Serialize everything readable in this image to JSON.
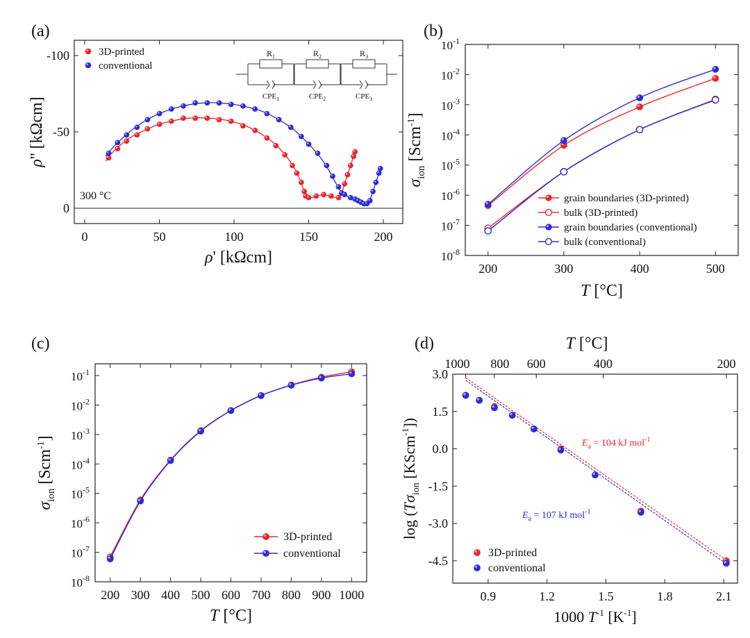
{
  "colors": {
    "red": "#e8262d",
    "blue": "#2b2bd6",
    "purple": "#8a3fa0",
    "frame": "#222222"
  },
  "chart_data": [
    {
      "panel_label": "(a)",
      "type": "scatter",
      "xlabel": "ρ' [kΩcm]",
      "ylabel": "ρ'' [kΩcm]",
      "xlim": [
        -7,
        213
      ],
      "ylim": [
        -110,
        10
      ],
      "y_inverted": true,
      "x_ticks": [
        "0",
        "50",
        "100",
        "150",
        "200"
      ],
      "y_ticks": [
        "-100",
        "-50",
        "0"
      ],
      "grid": false,
      "legend_position": "top-left",
      "annotation": "300 °C",
      "circuit": {
        "resistors": [
          "R1",
          "R2",
          "R3"
        ],
        "cpes": [
          "CPE1",
          "CPE2",
          "CPE3"
        ],
        "resistor_labels": [
          {
            "main": "R",
            "sub": "1"
          },
          {
            "main": "R",
            "sub": "2"
          },
          {
            "main": "R",
            "sub": "3"
          }
        ],
        "cpe_labels": [
          {
            "main": "CPE",
            "sub": "1"
          },
          {
            "main": "CPE",
            "sub": "2"
          },
          {
            "main": "CPE",
            "sub": "3"
          }
        ]
      },
      "series": [
        {
          "name": "3D-printed",
          "color": "#e8262d",
          "filled": true,
          "points": [
            [
              16,
              -33
            ],
            [
              22,
              -39
            ],
            [
              28,
              -44
            ],
            [
              35,
              -48
            ],
            [
              42,
              -52
            ],
            [
              50,
              -55
            ],
            [
              58,
              -57
            ],
            [
              66,
              -59
            ],
            [
              74,
              -59
            ],
            [
              82,
              -59
            ],
            [
              90,
              -58
            ],
            [
              98,
              -57
            ],
            [
              106,
              -54
            ],
            [
              114,
              -51
            ],
            [
              122,
              -46
            ],
            [
              128,
              -41
            ],
            [
              134,
              -35
            ],
            [
              139,
              -28
            ],
            [
              142,
              -23
            ],
            [
              145,
              -17
            ],
            [
              147,
              -11
            ],
            [
              148,
              -8
            ],
            [
              150,
              -7
            ],
            [
              155,
              -8
            ],
            [
              160,
              -9
            ],
            [
              165,
              -8
            ],
            [
              170,
              -7
            ],
            [
              172,
              -10
            ],
            [
              174,
              -16
            ],
            [
              176,
              -22
            ],
            [
              178,
              -28
            ],
            [
              180,
              -34
            ],
            [
              181,
              -37
            ]
          ]
        },
        {
          "name": "conventional",
          "color": "#2b2bd6",
          "filled": true,
          "points": [
            [
              16,
              -36
            ],
            [
              22,
              -43
            ],
            [
              28,
              -48
            ],
            [
              35,
              -53
            ],
            [
              42,
              -58
            ],
            [
              50,
              -62
            ],
            [
              58,
              -65
            ],
            [
              66,
              -67
            ],
            [
              74,
              -69
            ],
            [
              82,
              -69
            ],
            [
              90,
              -69
            ],
            [
              98,
              -68
            ],
            [
              106,
              -67
            ],
            [
              114,
              -65
            ],
            [
              122,
              -62
            ],
            [
              130,
              -58
            ],
            [
              138,
              -53
            ],
            [
              145,
              -47
            ],
            [
              150,
              -42
            ],
            [
              156,
              -36
            ],
            [
              162,
              -28
            ],
            [
              166,
              -21
            ],
            [
              170,
              -14
            ],
            [
              172,
              -10
            ],
            [
              174,
              -9
            ],
            [
              178,
              -7
            ],
            [
              181,
              -6
            ],
            [
              183,
              -5
            ],
            [
              185,
              -4
            ],
            [
              187,
              -3
            ],
            [
              189,
              -3
            ],
            [
              191,
              -5
            ],
            [
              193,
              -11
            ],
            [
              195,
              -17
            ],
            [
              197,
              -23
            ],
            [
              198,
              -26
            ]
          ]
        }
      ],
      "fit_curves": [
        {
          "color": "#e8262d",
          "points": [
            [
              14,
              -31
            ],
            [
              20,
              -38
            ],
            [
              30,
              -46
            ],
            [
              40,
              -51
            ],
            [
              50,
              -55
            ],
            [
              60,
              -57.5
            ],
            [
              70,
              -59
            ],
            [
              80,
              -59.2
            ],
            [
              90,
              -58.4
            ],
            [
              100,
              -56.5
            ],
            [
              110,
              -53
            ],
            [
              120,
              -47.5
            ],
            [
              128,
              -41.5
            ],
            [
              135,
              -34
            ],
            [
              140,
              -27
            ],
            [
              144,
              -19
            ],
            [
              147,
              -11
            ],
            [
              149,
              -7.5
            ],
            [
              152,
              -7
            ],
            [
              158,
              -8.6
            ],
            [
              164,
              -8.2
            ],
            [
              169,
              -7
            ],
            [
              172,
              -10
            ],
            [
              175,
              -19
            ],
            [
              178,
              -28
            ],
            [
              181,
              -37
            ]
          ]
        },
        {
          "color": "#2b2bd6",
          "points": [
            [
              14,
              -34
            ],
            [
              20,
              -41
            ],
            [
              30,
              -50
            ],
            [
              40,
              -57
            ],
            [
              50,
              -62
            ],
            [
              60,
              -65.5
            ],
            [
              70,
              -67.8
            ],
            [
              80,
              -69
            ],
            [
              90,
              -69
            ],
            [
              100,
              -68
            ],
            [
              110,
              -66
            ],
            [
              120,
              -63
            ],
            [
              130,
              -58
            ],
            [
              140,
              -51.5
            ],
            [
              150,
              -42
            ],
            [
              158,
              -33
            ],
            [
              164,
              -24
            ],
            [
              169,
              -15
            ],
            [
              173,
              -9.5
            ],
            [
              178,
              -7
            ],
            [
              183,
              -5
            ],
            [
              187,
              -3.2
            ],
            [
              190,
              -4
            ],
            [
              193,
              -11
            ],
            [
              196,
              -20
            ],
            [
              198,
              -26
            ]
          ]
        }
      ]
    },
    {
      "panel_label": "(b)",
      "type": "line",
      "xlabel": "T [°C]",
      "ylabel": "σ_ion [Scm^-1]",
      "xlabel_main": "T [°C]",
      "ylabel_parts": {
        "sym": "σ",
        "sub": "ion",
        "unit": "[Scm",
        "sup": "-1",
        "close": "]"
      },
      "xlim": [
        170,
        530
      ],
      "y_log": true,
      "ylim_log10": [
        -8,
        -1
      ],
      "x_ticks": [
        "200",
        "300",
        "400",
        "500"
      ],
      "y_tick_labels": [
        {
          "b": "10",
          "e": "-8"
        },
        {
          "b": "10",
          "e": "-7"
        },
        {
          "b": "10",
          "e": "-6"
        },
        {
          "b": "10",
          "e": "-5"
        },
        {
          "b": "10",
          "e": "-4"
        },
        {
          "b": "10",
          "e": "-3"
        },
        {
          "b": "10",
          "e": "-2"
        },
        {
          "b": "10",
          "e": "-1"
        }
      ],
      "legend_position": "bottom-right",
      "x": [
        200,
        300,
        400,
        500
      ],
      "series": [
        {
          "name": "grain boundaries (3D-printed)",
          "color": "#e8262d",
          "filled": true,
          "values": [
            4.5e-07,
            4.5e-05,
            0.00085,
            0.0075
          ]
        },
        {
          "name": "bulk (3D-printed)",
          "color": "#e8262d",
          "filled": false,
          "values": [
            8e-08,
            6e-06,
            0.00015,
            0.0015
          ]
        },
        {
          "name": "grain boundaries (conventional)",
          "color": "#2b2bd6",
          "filled": true,
          "values": [
            5e-07,
            6.5e-05,
            0.0017,
            0.015
          ]
        },
        {
          "name": "bulk (conventional)",
          "color": "#2b2bd6",
          "filled": false,
          "values": [
            6.5e-08,
            6e-06,
            0.00015,
            0.00145
          ]
        }
      ]
    },
    {
      "panel_label": "(c)",
      "type": "line",
      "xlabel": "T [°C]",
      "ylabel": "σ_ion [Scm^-1]",
      "ylabel_parts": {
        "sym": "σ",
        "sub": "ion",
        "unit": "[Scm",
        "sup": "-1",
        "close": "]"
      },
      "xlim": [
        150,
        1050
      ],
      "y_log": true,
      "ylim_log10": [
        -8,
        -0.6
      ],
      "x_ticks": [
        "200",
        "300",
        "400",
        "500",
        "600",
        "700",
        "800",
        "900",
        "1000"
      ],
      "y_tick_labels": [
        {
          "b": "10",
          "e": "-8"
        },
        {
          "b": "10",
          "e": "-7"
        },
        {
          "b": "10",
          "e": "-6"
        },
        {
          "b": "10",
          "e": "-5"
        },
        {
          "b": "10",
          "e": "-4"
        },
        {
          "b": "10",
          "e": "-3"
        },
        {
          "b": "10",
          "e": "-2"
        },
        {
          "b": "10",
          "e": "-1"
        }
      ],
      "legend_position": "bottom-right",
      "x": [
        200,
        300,
        400,
        500,
        600,
        700,
        800,
        900,
        1000
      ],
      "series": [
        {
          "name": "3D-printed",
          "color": "#e8262d",
          "values": [
            7e-08,
            6e-06,
            0.000135,
            0.00135,
            0.0065,
            0.021,
            0.048,
            0.088,
            0.135
          ]
        },
        {
          "name": "conventional",
          "color": "#2b2bd6",
          "values": [
            6e-08,
            5.5e-06,
            0.00013,
            0.0013,
            0.0065,
            0.021,
            0.047,
            0.082,
            0.115
          ]
        }
      ]
    },
    {
      "panel_label": "(d)",
      "type": "scatter",
      "xlabel": "1000 T^-1 [K^-1]",
      "xlabel_parts": {
        "pre": "1000 ",
        "sym": "T",
        "sup": "-1",
        "unit": " [K",
        "sup2": "-1",
        "close": "]"
      },
      "ylabel": "log (Tσ_ion [KScm^-1])",
      "ylabel_parts": {
        "pre": "log (",
        "T": "T",
        "sym": "σ",
        "sub": "ion",
        "unit": " [KScm",
        "sup": "-1",
        "close": "])"
      },
      "top_xlabel": "T [°C]",
      "top_x_ticks": [
        {
          "label": "1000",
          "T": 1000
        },
        {
          "label": "800",
          "T": 800
        },
        {
          "label": "600",
          "T": 600
        },
        {
          "label": "400",
          "T": 400
        },
        {
          "label": "200",
          "T": 200
        }
      ],
      "xlim": [
        0.72,
        2.17
      ],
      "ylim": [
        -5.4,
        3.0
      ],
      "x_ticks": [
        "0.9",
        "1.2",
        "1.5",
        "1.8",
        "2.1"
      ],
      "y_ticks": [
        "-4.5",
        "-3.0",
        "-1.5",
        "0.0",
        "1.5",
        "3.0"
      ],
      "legend_position": "bottom-left",
      "annotations": [
        {
          "text_main": "E",
          "text_sub": "a",
          "text_rest": " = 104 kJ mol",
          "text_sup": "-1",
          "color": "#e8262d"
        },
        {
          "text_main": "E",
          "text_sub": "a",
          "text_rest": " = 107 kJ mol",
          "text_sup": "-1",
          "color": "#2b2bd6"
        }
      ],
      "series": [
        {
          "name": "3D-printed",
          "color": "#e8262d",
          "x": [
            0.786,
            0.855,
            0.932,
            1.023,
            1.133,
            1.27,
            1.445,
            1.678,
            2.113
          ],
          "y": [
            2.15,
            1.95,
            1.7,
            1.35,
            0.8,
            0.0,
            -1.05,
            -2.5,
            -4.5
          ]
        },
        {
          "name": "conventional",
          "color": "#2b2bd6",
          "x": [
            0.786,
            0.855,
            0.932,
            1.023,
            1.133,
            1.27,
            1.445,
            1.678,
            2.113
          ],
          "y": [
            2.15,
            1.95,
            1.65,
            1.35,
            0.8,
            -0.05,
            -1.05,
            -2.55,
            -4.6
          ]
        }
      ],
      "fit_lines": [
        {
          "color": "#e8262d",
          "x": [
            0.786,
            2.113
          ],
          "y": [
            2.85,
            -4.48
          ]
        },
        {
          "color": "#2b2bd6",
          "x": [
            0.786,
            2.113
          ],
          "y": [
            2.75,
            -4.62
          ]
        }
      ]
    }
  ]
}
